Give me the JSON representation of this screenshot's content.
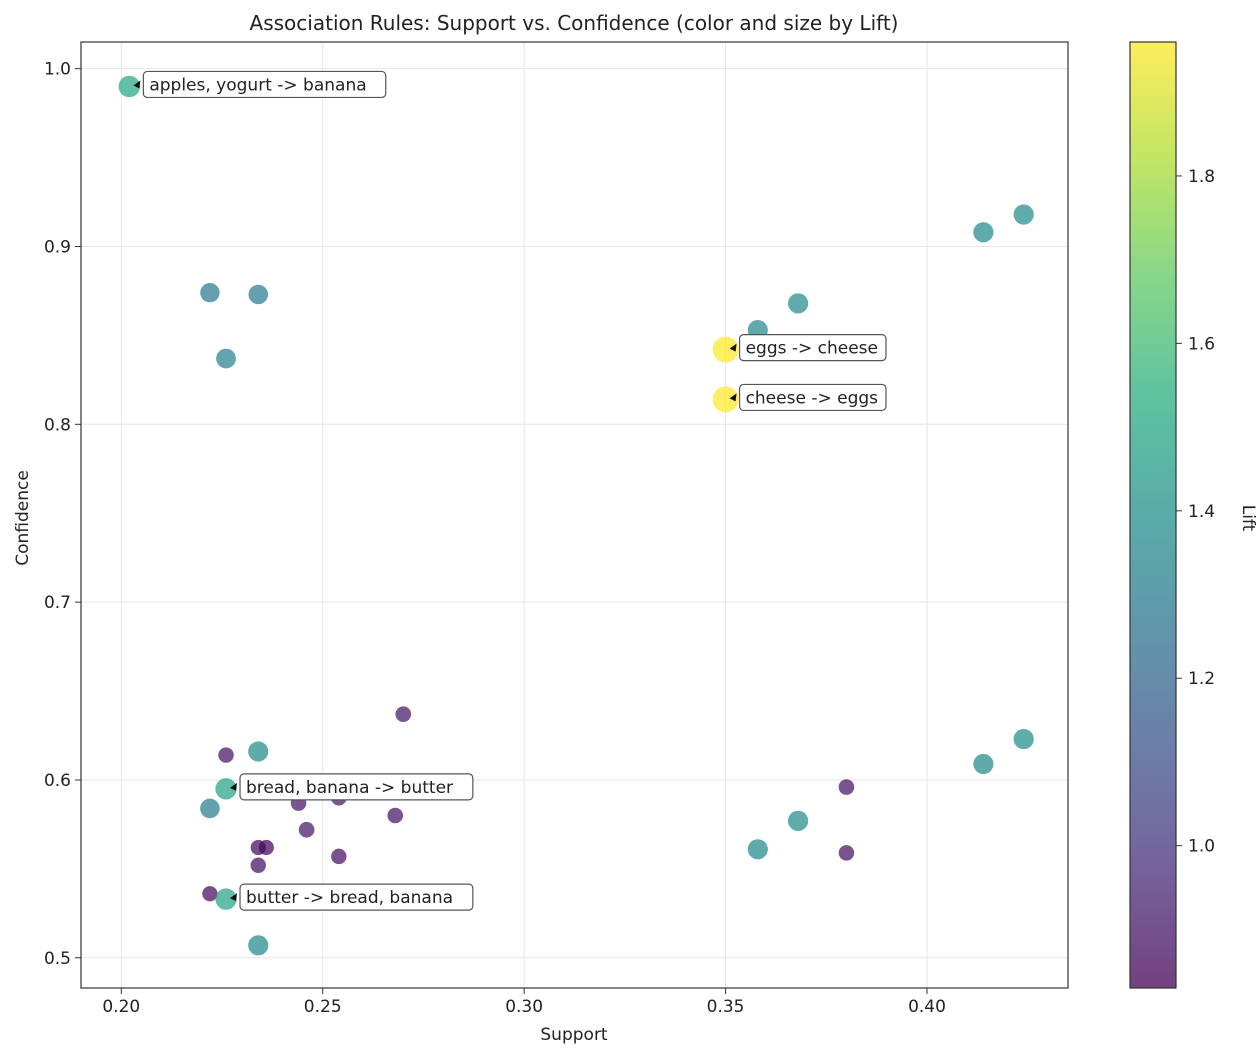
{
  "chart_data": {
    "type": "scatter",
    "title": "Association Rules: Support vs. Confidence (color and size by Lift)",
    "xlabel": "Support",
    "ylabel": "Confidence",
    "xlim": [
      0.19,
      0.435
    ],
    "ylim": [
      0.483,
      1.015
    ],
    "xticks": [
      "0.20",
      "0.25",
      "0.30",
      "0.35",
      "0.40"
    ],
    "yticks": [
      "0.5",
      "0.6",
      "0.7",
      "0.8",
      "0.9",
      "1.0"
    ],
    "grid": true,
    "colormap": "viridis",
    "colorbar": {
      "label": "Lift",
      "range": [
        0.83,
        1.96
      ],
      "ticks": [
        "1.0",
        "1.2",
        "1.4",
        "1.6",
        "1.8"
      ]
    },
    "points": [
      {
        "x": 0.202,
        "y": 0.99,
        "lift": 1.5
      },
      {
        "x": 0.222,
        "y": 0.874,
        "lift": 1.28
      },
      {
        "x": 0.234,
        "y": 0.873,
        "lift": 1.3
      },
      {
        "x": 0.226,
        "y": 0.837,
        "lift": 1.32
      },
      {
        "x": 0.414,
        "y": 0.908,
        "lift": 1.36
      },
      {
        "x": 0.424,
        "y": 0.918,
        "lift": 1.37
      },
      {
        "x": 0.358,
        "y": 0.853,
        "lift": 1.36
      },
      {
        "x": 0.368,
        "y": 0.868,
        "lift": 1.37
      },
      {
        "x": 0.35,
        "y": 0.842,
        "lift": 1.96
      },
      {
        "x": 0.35,
        "y": 0.814,
        "lift": 1.96
      },
      {
        "x": 0.27,
        "y": 0.637,
        "lift": 0.9
      },
      {
        "x": 0.226,
        "y": 0.614,
        "lift": 0.88
      },
      {
        "x": 0.234,
        "y": 0.616,
        "lift": 1.36
      },
      {
        "x": 0.226,
        "y": 0.595,
        "lift": 1.48
      },
      {
        "x": 0.222,
        "y": 0.584,
        "lift": 1.3
      },
      {
        "x": 0.244,
        "y": 0.587,
        "lift": 0.89
      },
      {
        "x": 0.254,
        "y": 0.59,
        "lift": 0.9
      },
      {
        "x": 0.268,
        "y": 0.58,
        "lift": 0.89
      },
      {
        "x": 0.246,
        "y": 0.572,
        "lift": 0.9
      },
      {
        "x": 0.234,
        "y": 0.562,
        "lift": 0.86
      },
      {
        "x": 0.236,
        "y": 0.562,
        "lift": 0.85
      },
      {
        "x": 0.254,
        "y": 0.557,
        "lift": 0.88
      },
      {
        "x": 0.234,
        "y": 0.552,
        "lift": 0.88
      },
      {
        "x": 0.222,
        "y": 0.536,
        "lift": 0.86
      },
      {
        "x": 0.226,
        "y": 0.533,
        "lift": 1.48
      },
      {
        "x": 0.234,
        "y": 0.507,
        "lift": 1.36
      },
      {
        "x": 0.424,
        "y": 0.623,
        "lift": 1.37
      },
      {
        "x": 0.414,
        "y": 0.609,
        "lift": 1.36
      },
      {
        "x": 0.38,
        "y": 0.596,
        "lift": 0.89
      },
      {
        "x": 0.368,
        "y": 0.577,
        "lift": 1.37
      },
      {
        "x": 0.358,
        "y": 0.561,
        "lift": 1.36
      },
      {
        "x": 0.38,
        "y": 0.559,
        "lift": 0.88
      }
    ],
    "annotations": [
      {
        "text": "apples, yogurt -> banana",
        "x": 0.202,
        "y": 0.99
      },
      {
        "text": "eggs -> cheese",
        "x": 0.35,
        "y": 0.842
      },
      {
        "text": "cheese -> eggs",
        "x": 0.35,
        "y": 0.814
      },
      {
        "text": "bread, banana -> butter",
        "x": 0.226,
        "y": 0.595
      },
      {
        "text": "butter -> bread, banana",
        "x": 0.226,
        "y": 0.533
      }
    ]
  }
}
